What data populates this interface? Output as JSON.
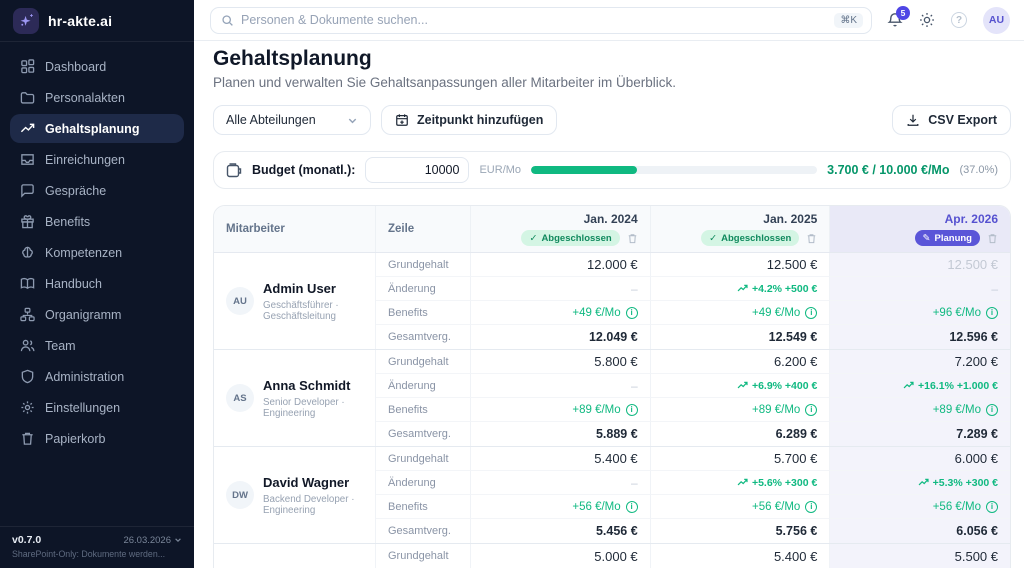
{
  "brand": {
    "name": "hr-akte.ai"
  },
  "sidebar": {
    "items": [
      {
        "label": "Dashboard",
        "icon": "grid-icon",
        "active": false
      },
      {
        "label": "Personalakten",
        "icon": "folder-icon",
        "active": false
      },
      {
        "label": "Gehaltsplanung",
        "icon": "trending-up-icon",
        "active": true
      },
      {
        "label": "Einreichungen",
        "icon": "inbox-icon",
        "active": false
      },
      {
        "label": "Gespräche",
        "icon": "chat-icon",
        "active": false
      },
      {
        "label": "Benefits",
        "icon": "gift-icon",
        "active": false
      },
      {
        "label": "Kompetenzen",
        "icon": "brain-icon",
        "active": false
      },
      {
        "label": "Handbuch",
        "icon": "book-icon",
        "active": false
      },
      {
        "label": "Organigramm",
        "icon": "org-chart-icon",
        "active": false
      },
      {
        "label": "Team",
        "icon": "users-icon",
        "active": false
      },
      {
        "label": "Administration",
        "icon": "shield-icon",
        "active": false
      },
      {
        "label": "Einstellungen",
        "icon": "gear-icon",
        "active": false
      },
      {
        "label": "Papierkorb",
        "icon": "trash-icon",
        "active": false
      }
    ],
    "footer": {
      "version": "v0.7.0",
      "date": "26.03.2026",
      "note": "SharePoint-Only: Dokumente werden..."
    }
  },
  "topbar": {
    "search_placeholder": "Personen & Dokumente suchen...",
    "shortcut": "⌘K",
    "notification_count": "5",
    "avatar_initials": "AU"
  },
  "page": {
    "title": "Gehaltsplanung",
    "subtitle": "Planen und verwalten Sie Gehaltsanpassungen aller Mitarbeiter im Überblick."
  },
  "controls": {
    "department_filter": "Alle Abteilungen",
    "add_timepoint": "Zeitpunkt hinzufügen",
    "csv_export": "CSV Export"
  },
  "budget": {
    "label": "Budget (monatl.):",
    "value": "10000",
    "unit": "EUR/Mo",
    "progress_pct": 37,
    "summary": "3.700 € / 10.000 €/Mo",
    "percent_label": "(37.0%)"
  },
  "table": {
    "headers": {
      "employee": "Mitarbeiter",
      "row": "Zeile"
    },
    "periods": [
      {
        "label": "Jan. 2024",
        "badge": "Abgeschlossen",
        "status": "done"
      },
      {
        "label": "Jan. 2025",
        "badge": "Abgeschlossen",
        "status": "done"
      },
      {
        "label": "Apr. 2026",
        "badge": "Planung",
        "status": "planning"
      }
    ],
    "row_labels": {
      "grundgehalt": "Grundgehalt",
      "aenderung": "Änderung",
      "benefits": "Benefits",
      "gesamt": "Gesamtverg."
    },
    "employees": [
      {
        "initials": "AU",
        "name": "Admin User",
        "role": "Geschäftsführer · Geschäftsleitung",
        "grundgehalt": [
          "12.000 €",
          "12.500 €",
          "12.500 €"
        ],
        "aenderung": [
          "–",
          "+4.2% +500 €",
          "–"
        ],
        "benefits": [
          "+49 €/Mo",
          "+49 €/Mo",
          "+96 €/Mo"
        ],
        "gesamt": [
          "12.049 €",
          "12.549 €",
          "12.596 €"
        ]
      },
      {
        "initials": "AS",
        "name": "Anna Schmidt",
        "role": "Senior Developer · Engineering",
        "grundgehalt": [
          "5.800 €",
          "6.200 €",
          "7.200 €"
        ],
        "aenderung": [
          "–",
          "+6.9% +400 €",
          "+16.1% +1.000 €"
        ],
        "benefits": [
          "+89 €/Mo",
          "+89 €/Mo",
          "+89 €/Mo"
        ],
        "gesamt": [
          "5.889 €",
          "6.289 €",
          "7.289 €"
        ]
      },
      {
        "initials": "DW",
        "name": "David Wagner",
        "role": "Backend Developer · Engineering",
        "grundgehalt": [
          "5.400 €",
          "5.700 €",
          "6.000 €"
        ],
        "aenderung": [
          "–",
          "+5.6% +300 €",
          "+5.3% +300 €"
        ],
        "benefits": [
          "+56 €/Mo",
          "+56 €/Mo",
          "+56 €/Mo"
        ],
        "gesamt": [
          "5.456 €",
          "5.756 €",
          "6.056 €"
        ]
      }
    ],
    "partial_row": {
      "label": "Grundgehalt",
      "values": [
        "5.000 €",
        "5.400 €",
        "5.500 €"
      ]
    }
  }
}
